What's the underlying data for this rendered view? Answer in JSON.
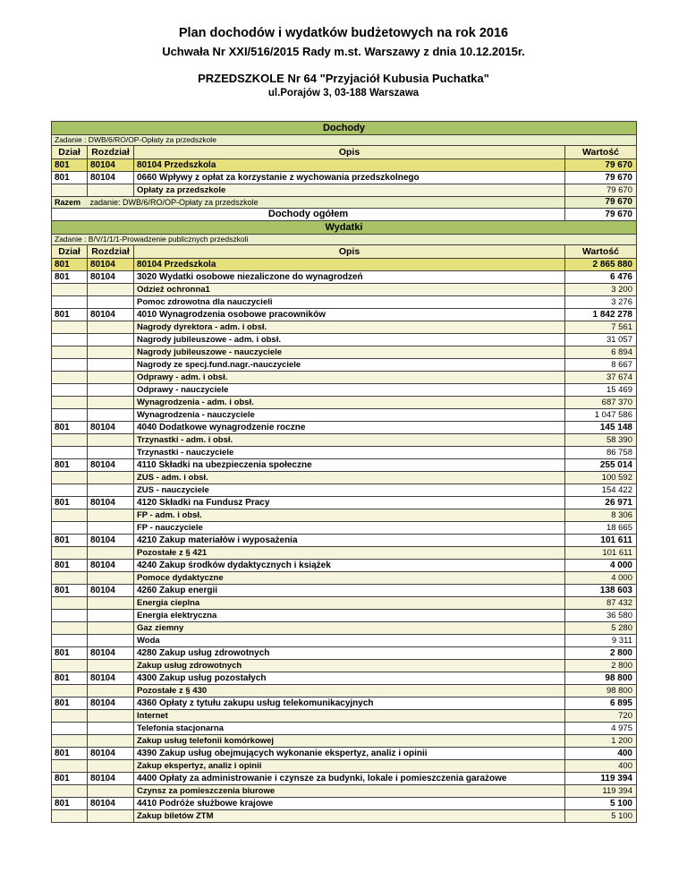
{
  "header": {
    "title": "Plan dochodów i wydatków budżetowych na rok 2016",
    "subtitle": "Uchwała Nr XXI/516/2015 Rady m.st. Warszawy z dnia 10.12.2015r.",
    "institution": "PRZEDSZKOLE Nr 64 \"Przyjaciół Kubusia Puchatka\"",
    "address": "ul.Porajów 3, 03-188 Warszawa"
  },
  "colors": {
    "section_header_bg": "#a9c266",
    "zadanie_bg": "#eaeecb",
    "col_header_bg": "#f1efc2",
    "chapter_bg": "#e6e17d",
    "detail_cream_bg": "#f7f4de",
    "razem_bg": "#eaeecb",
    "border": "#3f3f3f"
  },
  "table": {
    "columns": [
      "Dział",
      "Rozdział",
      "Opis",
      "Wartość"
    ],
    "sections": [
      {
        "name": "Dochody",
        "zadanie": "Zadanie : DWB/6/RO/OP-Opłaty za przedszkole",
        "rows": [
          {
            "type": "chapter",
            "dzial": "801",
            "rozdzial": "80104",
            "opis": "80104 Przedszkola",
            "wartosc": "79 670"
          },
          {
            "type": "para",
            "dzial": "801",
            "rozdzial": "80104",
            "opis": "0660 Wpływy z opłat za korzystanie z wychowania przedszkolnego",
            "wartosc": "79 670"
          },
          {
            "type": "detail",
            "dzial": "",
            "rozdzial": "",
            "opis": "Opłaty za przedszkole",
            "wartosc": "79 670"
          }
        ],
        "razem_label": "Razem",
        "razem_text": "zadanie: DWB/6/RO/OP-Opłaty za przedszkole",
        "razem_value": "79 670",
        "total_label": "Dochody ogółem",
        "total_value": "79 670"
      },
      {
        "name": "Wydatki",
        "zadanie": "Zadanie : B/V/1/1/1-Prowadzenie publicznych przedszkoli",
        "rows": [
          {
            "type": "chapter",
            "dzial": "801",
            "rozdzial": "80104",
            "opis": "80104 Przedszkola",
            "wartosc": "2 865 880"
          },
          {
            "type": "para",
            "dzial": "801",
            "rozdzial": "80104",
            "opis": "3020 Wydatki osobowe niezaliczone do wynagrodzeń",
            "wartosc": "6 476"
          },
          {
            "type": "detail",
            "dzial": "",
            "rozdzial": "",
            "opis": "Odzież ochronna1",
            "wartosc": "3 200"
          },
          {
            "type": "detail",
            "dzial": "",
            "rozdzial": "",
            "opis": "Pomoc zdrowotna dla nauczycieli",
            "wartosc": "3 276"
          },
          {
            "type": "para",
            "dzial": "801",
            "rozdzial": "80104",
            "opis": "4010 Wynagrodzenia osobowe pracowników",
            "wartosc": "1 842 278"
          },
          {
            "type": "detail",
            "dzial": "",
            "rozdzial": "",
            "opis": "Nagrody dyrektora - adm. i obsł.",
            "wartosc": "7 561"
          },
          {
            "type": "detail",
            "dzial": "",
            "rozdzial": "",
            "opis": "Nagrody jubileuszowe - adm. i obsł.",
            "wartosc": "31 057"
          },
          {
            "type": "detail",
            "dzial": "",
            "rozdzial": "",
            "opis": "Nagrody jubileuszowe - nauczyciele",
            "wartosc": "6 894"
          },
          {
            "type": "detail",
            "dzial": "",
            "rozdzial": "",
            "opis": "Nagrody ze specj.fund.nagr.-nauczyciele",
            "wartosc": "8 667"
          },
          {
            "type": "detail",
            "dzial": "",
            "rozdzial": "",
            "opis": "Odprawy - adm. i obsł.",
            "wartosc": "37 674"
          },
          {
            "type": "detail",
            "dzial": "",
            "rozdzial": "",
            "opis": "Odprawy - nauczyciele",
            "wartosc": "15 469"
          },
          {
            "type": "detail",
            "dzial": "",
            "rozdzial": "",
            "opis": "Wynagrodzenia - adm. i obsł.",
            "wartosc": "687 370"
          },
          {
            "type": "detail",
            "dzial": "",
            "rozdzial": "",
            "opis": "Wynagrodzenia - nauczyciele",
            "wartosc": "1 047 586"
          },
          {
            "type": "para",
            "dzial": "801",
            "rozdzial": "80104",
            "opis": "4040 Dodatkowe wynagrodzenie roczne",
            "wartosc": "145 148"
          },
          {
            "type": "detail",
            "dzial": "",
            "rozdzial": "",
            "opis": "Trzynastki - adm. i obsł.",
            "wartosc": "58 390"
          },
          {
            "type": "detail",
            "dzial": "",
            "rozdzial": "",
            "opis": "Trzynastki - nauczyciele",
            "wartosc": "86 758"
          },
          {
            "type": "para",
            "dzial": "801",
            "rozdzial": "80104",
            "opis": "4110 Składki na ubezpieczenia społeczne",
            "wartosc": "255 014"
          },
          {
            "type": "detail",
            "dzial": "",
            "rozdzial": "",
            "opis": "ZUS - adm. i obsł.",
            "wartosc": "100 592"
          },
          {
            "type": "detail",
            "dzial": "",
            "rozdzial": "",
            "opis": "ZUS - nauczyciele",
            "wartosc": "154 422"
          },
          {
            "type": "para",
            "dzial": "801",
            "rozdzial": "80104",
            "opis": "4120 Składki na Fundusz Pracy",
            "wartosc": "26 971"
          },
          {
            "type": "detail",
            "dzial": "",
            "rozdzial": "",
            "opis": "FP - adm. i obsł.",
            "wartosc": "8 306"
          },
          {
            "type": "detail",
            "dzial": "",
            "rozdzial": "",
            "opis": "FP - nauczyciele",
            "wartosc": "18 665"
          },
          {
            "type": "para",
            "dzial": "801",
            "rozdzial": "80104",
            "opis": "4210 Zakup materiałów i wyposażenia",
            "wartosc": "101 611"
          },
          {
            "type": "detail",
            "dzial": "",
            "rozdzial": "",
            "opis": "Pozostałe z § 421",
            "wartosc": "101 611"
          },
          {
            "type": "para",
            "dzial": "801",
            "rozdzial": "80104",
            "opis": "4240 Zakup środków dydaktycznych i książek",
            "wartosc": "4 000"
          },
          {
            "type": "detail",
            "dzial": "",
            "rozdzial": "",
            "opis": "Pomoce dydaktyczne",
            "wartosc": "4 000"
          },
          {
            "type": "para",
            "dzial": "801",
            "rozdzial": "80104",
            "opis": "4260 Zakup energii",
            "wartosc": "138 603"
          },
          {
            "type": "detail",
            "dzial": "",
            "rozdzial": "",
            "opis": "Energia cieplna",
            "wartosc": "87 432"
          },
          {
            "type": "detail",
            "dzial": "",
            "rozdzial": "",
            "opis": "Energia elektryczna",
            "wartosc": "36 580"
          },
          {
            "type": "detail",
            "dzial": "",
            "rozdzial": "",
            "opis": "Gaz ziemny",
            "wartosc": "5 280"
          },
          {
            "type": "detail",
            "dzial": "",
            "rozdzial": "",
            "opis": "Woda",
            "wartosc": "9 311"
          },
          {
            "type": "para",
            "dzial": "801",
            "rozdzial": "80104",
            "opis": "4280 Zakup usług zdrowotnych",
            "wartosc": "2 800"
          },
          {
            "type": "detail",
            "dzial": "",
            "rozdzial": "",
            "opis": "Zakup usług zdrowotnych",
            "wartosc": "2 800"
          },
          {
            "type": "para",
            "dzial": "801",
            "rozdzial": "80104",
            "opis": "4300 Zakup usług pozostałych",
            "wartosc": "98 800"
          },
          {
            "type": "detail",
            "dzial": "",
            "rozdzial": "",
            "opis": "Pozostałe z § 430",
            "wartosc": "98 800"
          },
          {
            "type": "para",
            "dzial": "801",
            "rozdzial": "80104",
            "opis": "4360 Opłaty z tytułu zakupu usług telekomunikacyjnych",
            "wartosc": "6 895"
          },
          {
            "type": "detail",
            "dzial": "",
            "rozdzial": "",
            "opis": "Internet",
            "wartosc": "720"
          },
          {
            "type": "detail",
            "dzial": "",
            "rozdzial": "",
            "opis": "Telefonia stacjonarna",
            "wartosc": "4 975"
          },
          {
            "type": "detail",
            "dzial": "",
            "rozdzial": "",
            "opis": "Zakup usług telefonii komórkowej",
            "wartosc": "1 200"
          },
          {
            "type": "para",
            "dzial": "801",
            "rozdzial": "80104",
            "opis": "4390 Zakup usług obejmujących wykonanie ekspertyz, analiz i opinii",
            "wartosc": "400"
          },
          {
            "type": "detail",
            "dzial": "",
            "rozdzial": "",
            "opis": "Zakup ekspertyz, analiz i opinii",
            "wartosc": "400"
          },
          {
            "type": "para",
            "dzial": "801",
            "rozdzial": "80104",
            "opis": "4400 Opłaty za administrowanie i czynsze za budynki, lokale i pomieszczenia garażowe",
            "wartosc": "119 394"
          },
          {
            "type": "detail",
            "dzial": "",
            "rozdzial": "",
            "opis": "Czynsz za pomieszczenia biurowe",
            "wartosc": "119 394"
          },
          {
            "type": "para",
            "dzial": "801",
            "rozdzial": "80104",
            "opis": "4410 Podróże służbowe krajowe",
            "wartosc": "5 100"
          },
          {
            "type": "detail",
            "dzial": "",
            "rozdzial": "",
            "opis": "Zakup biletów ZTM",
            "wartosc": "5 100"
          }
        ]
      }
    ]
  }
}
